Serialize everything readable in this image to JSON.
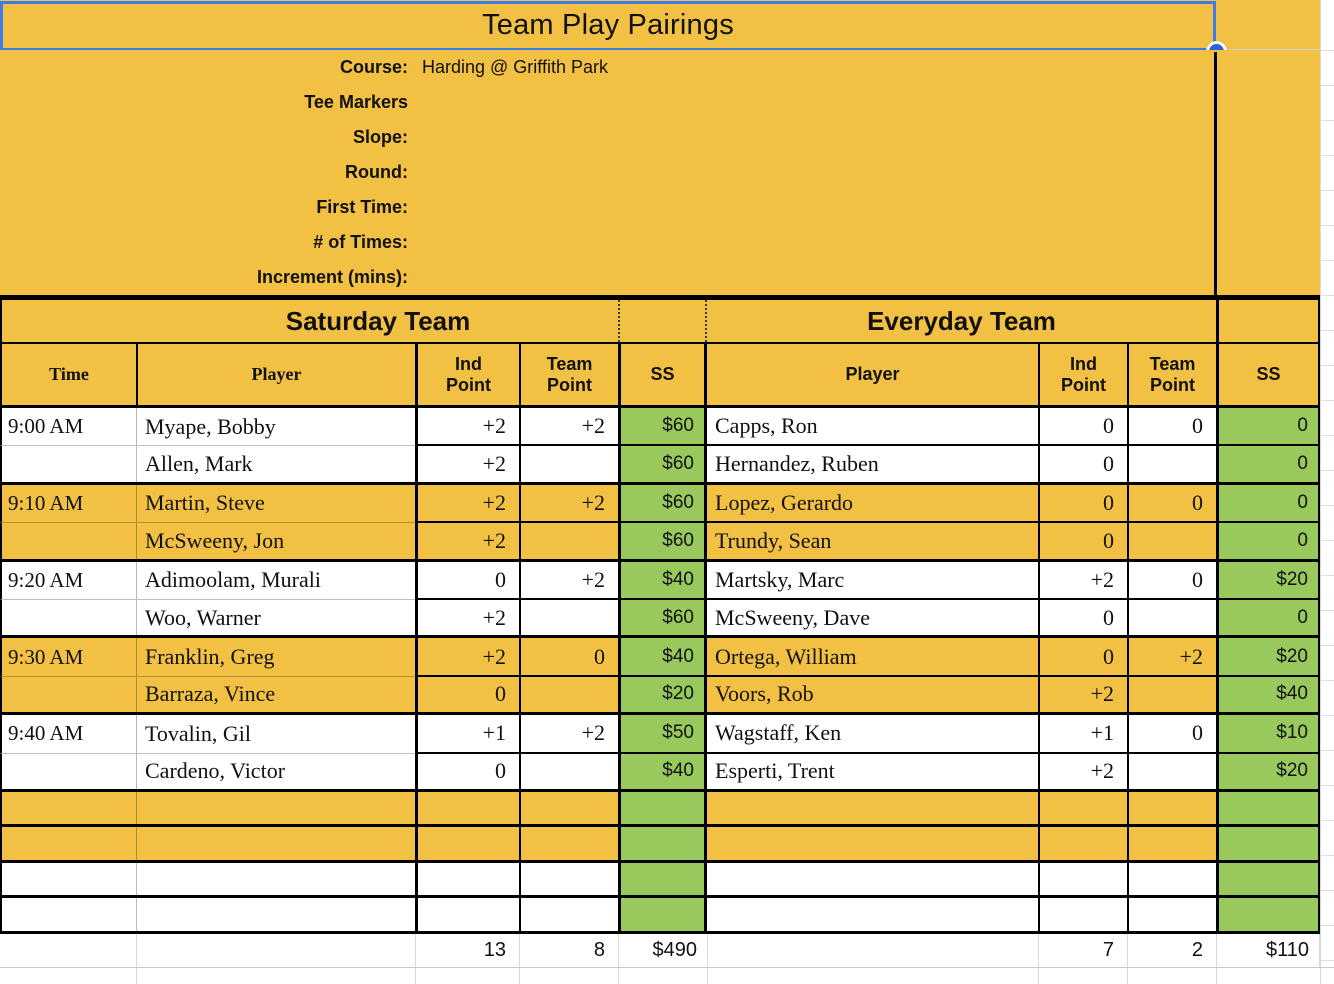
{
  "colors": {
    "accent_yellow": "#F2C144",
    "accent_green": "#99C85C",
    "selection_blue": "#3D7BE8",
    "grid_black": "#000000"
  },
  "title": "Team Play Pairings",
  "info": {
    "rows": [
      {
        "label": "Course:",
        "value": "Harding @ Griffith Park"
      },
      {
        "label": "Tee Markers",
        "value": ""
      },
      {
        "label": "Slope:",
        "value": ""
      },
      {
        "label": "Round:",
        "value": ""
      },
      {
        "label": "First Time:",
        "value": ""
      },
      {
        "label": "# of Times:",
        "value": ""
      },
      {
        "label": "Increment (mins):",
        "value": ""
      }
    ]
  },
  "table": {
    "left_section_title": "Saturday Team",
    "right_section_title": "Everyday Team",
    "headers_left": {
      "time": "Time",
      "player": "Player",
      "ind": "Ind Point",
      "team": "Team Point",
      "ss": "SS"
    },
    "headers_right": {
      "player": "Player",
      "ind": "Ind Point",
      "team": "Team Point",
      "ss": "SS"
    },
    "rows": [
      {
        "time": "9:00 AM",
        "shade": "white",
        "left": {
          "player": "Myape, Bobby",
          "ind": "+2",
          "team": "+2",
          "ss": "$60"
        },
        "right": {
          "player": "Capps, Ron",
          "ind": "0",
          "team": "0",
          "ss": "0"
        }
      },
      {
        "time": "",
        "shade": "white",
        "left": {
          "player": "Allen, Mark",
          "ind": "+2",
          "team": "",
          "ss": "$60"
        },
        "right": {
          "player": "Hernandez, Ruben",
          "ind": "0",
          "team": "",
          "ss": "0"
        }
      },
      {
        "time": "9:10 AM",
        "shade": "yellow",
        "left": {
          "player": "Martin, Steve",
          "ind": "+2",
          "team": "+2",
          "ss": "$60"
        },
        "right": {
          "player": "Lopez, Gerardo",
          "ind": "0",
          "team": "0",
          "ss": "0"
        }
      },
      {
        "time": "",
        "shade": "yellow",
        "left": {
          "player": "McSweeny, Jon",
          "ind": "+2",
          "team": "",
          "ss": "$60"
        },
        "right": {
          "player": "Trundy, Sean",
          "ind": "0",
          "team": "",
          "ss": "0"
        }
      },
      {
        "time": "9:20 AM",
        "shade": "white",
        "left": {
          "player": "Adimoolam, Murali",
          "ind": "0",
          "team": "+2",
          "ss": "$40"
        },
        "right": {
          "player": "Martsky, Marc",
          "ind": "+2",
          "team": "0",
          "ss": "$20"
        }
      },
      {
        "time": "",
        "shade": "white",
        "left": {
          "player": "Woo, Warner",
          "ind": "+2",
          "team": "",
          "ss": "$60"
        },
        "right": {
          "player": "McSweeny, Dave",
          "ind": "0",
          "team": "",
          "ss": "0"
        }
      },
      {
        "time": "9:30 AM",
        "shade": "yellow",
        "left": {
          "player": "Franklin, Greg",
          "ind": "+2",
          "team": "0",
          "ss": "$40"
        },
        "right": {
          "player": "Ortega, William",
          "ind": "0",
          "team": "+2",
          "ss": "$20"
        }
      },
      {
        "time": "",
        "shade": "yellow",
        "left": {
          "player": "Barraza, Vince",
          "ind": "0",
          "team": "",
          "ss": "$20"
        },
        "right": {
          "player": "Voors, Rob",
          "ind": "+2",
          "team": "",
          "ss": "$40"
        }
      },
      {
        "time": "9:40 AM",
        "shade": "white",
        "left": {
          "player": "Tovalin, Gil",
          "ind": "+1",
          "team": "+2",
          "ss": "$50"
        },
        "right": {
          "player": "Wagstaff, Ken",
          "ind": "+1",
          "team": "0",
          "ss": "$10"
        }
      },
      {
        "time": "",
        "shade": "white",
        "left": {
          "player": "Cardeno, Victor",
          "ind": "0",
          "team": "",
          "ss": "$40"
        },
        "right": {
          "player": "Esperti, Trent",
          "ind": "+2",
          "team": "",
          "ss": "$20"
        }
      }
    ],
    "empty_rows": [
      {
        "shade": "yellow"
      },
      {
        "shade": "yellow"
      },
      {
        "shade": "white"
      },
      {
        "shade": "white"
      }
    ],
    "totals": {
      "left": {
        "ind": "13",
        "team": "8",
        "ss": "$490"
      },
      "right": {
        "ind": "7",
        "team": "2",
        "ss": "$110"
      }
    }
  }
}
